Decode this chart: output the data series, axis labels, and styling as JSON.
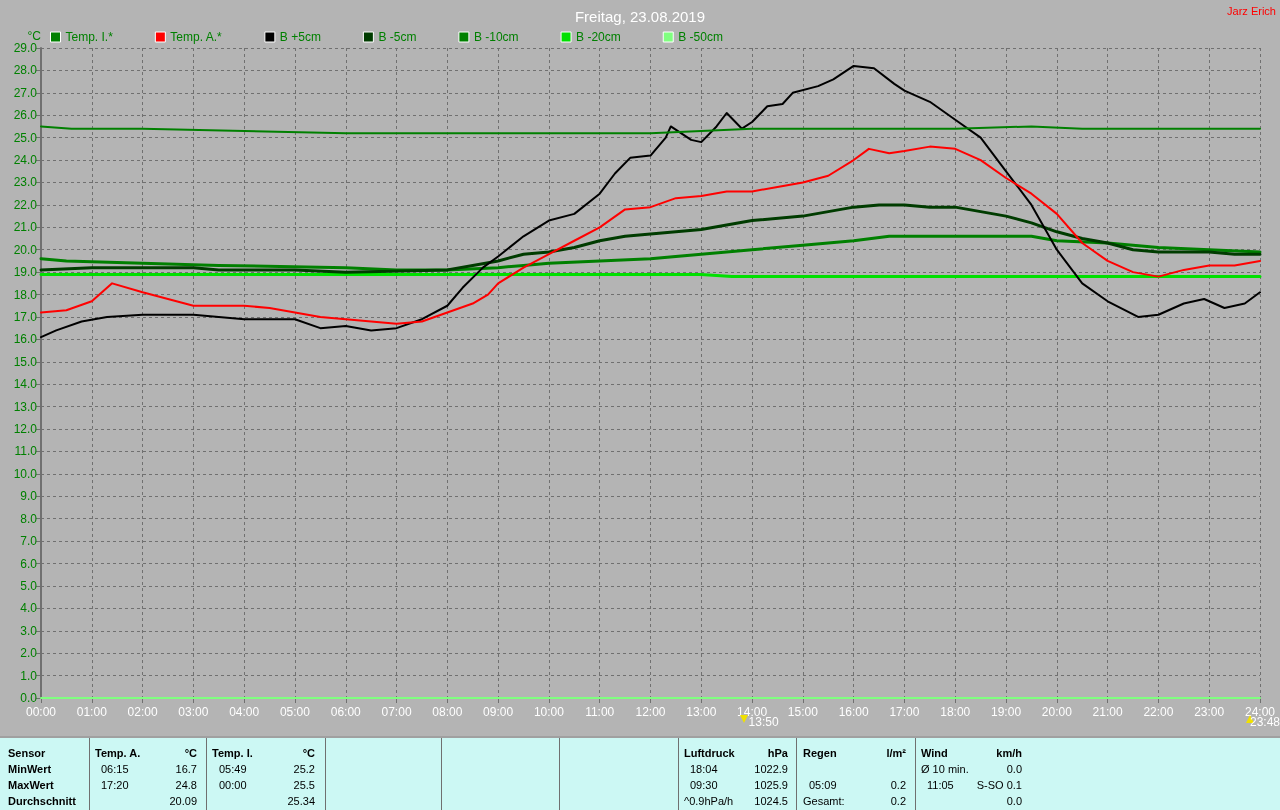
{
  "chart_data": {
    "type": "line",
    "title": "Freitag, 23.08.2019",
    "ylabel": "°C",
    "xlim": [
      0,
      24
    ],
    "ylim": [
      0,
      29
    ],
    "xticks": [
      {
        "value": 0,
        "label": "00:00"
      },
      {
        "value": 1,
        "label": "01:00"
      },
      {
        "value": 2,
        "label": "02:00"
      },
      {
        "value": 3,
        "label": "03:00"
      },
      {
        "value": 4,
        "label": "04:00"
      },
      {
        "value": 5,
        "label": "05:00"
      },
      {
        "value": 6,
        "label": "06:00"
      },
      {
        "value": 7,
        "label": "07:00"
      },
      {
        "value": 8,
        "label": "08:00"
      },
      {
        "value": 9,
        "label": "09:00"
      },
      {
        "value": 10,
        "label": "10:00"
      },
      {
        "value": 11,
        "label": "11:00"
      },
      {
        "value": 12,
        "label": "12:00"
      },
      {
        "value": 13,
        "label": "13:00"
      },
      {
        "value": 14,
        "label": "14:00"
      },
      {
        "value": 15,
        "label": "15:00"
      },
      {
        "value": 16,
        "label": "16:00"
      },
      {
        "value": 17,
        "label": "17:00"
      },
      {
        "value": 18,
        "label": "18:00"
      },
      {
        "value": 19,
        "label": "19:00"
      },
      {
        "value": 20,
        "label": "20:00"
      },
      {
        "value": 21,
        "label": "21:00"
      },
      {
        "value": 22,
        "label": "22:00"
      },
      {
        "value": 23,
        "label": "23:00"
      },
      {
        "value": 24,
        "label": "24:00"
      }
    ],
    "yticks": [
      {
        "value": 0,
        "label": "0.0"
      },
      {
        "value": 1,
        "label": "1.0"
      },
      {
        "value": 2,
        "label": "2.0"
      },
      {
        "value": 3,
        "label": "3.0"
      },
      {
        "value": 4,
        "label": "4.0"
      },
      {
        "value": 5,
        "label": "5.0"
      },
      {
        "value": 6,
        "label": "6.0"
      },
      {
        "value": 7,
        "label": "7.0"
      },
      {
        "value": 8,
        "label": "8.0"
      },
      {
        "value": 9,
        "label": "9.0"
      },
      {
        "value": 10,
        "label": "10.0"
      },
      {
        "value": 11,
        "label": "11.0"
      },
      {
        "value": 12,
        "label": "12.0"
      },
      {
        "value": 13,
        "label": "13.0"
      },
      {
        "value": 14,
        "label": "14.0"
      },
      {
        "value": 15,
        "label": "15.0"
      },
      {
        "value": 16,
        "label": "16.0"
      },
      {
        "value": 17,
        "label": "17.0"
      },
      {
        "value": 18,
        "label": "18.0"
      },
      {
        "value": 19,
        "label": "19.0"
      },
      {
        "value": 20,
        "label": "20.0"
      },
      {
        "value": 21,
        "label": "21.0"
      },
      {
        "value": 22,
        "label": "22.0"
      },
      {
        "value": 23,
        "label": "23.0"
      },
      {
        "value": 24,
        "label": "24.0"
      },
      {
        "value": 25,
        "label": "25.0"
      },
      {
        "value": 26,
        "label": "26.0"
      },
      {
        "value": 27,
        "label": "27.0"
      },
      {
        "value": 28,
        "label": "28.0"
      },
      {
        "value": 29,
        "label": "29.0"
      }
    ],
    "grid": true,
    "legend": "top left",
    "marker": "none",
    "line_style": "solid",
    "series": [
      {
        "name": "Temp. I.*",
        "color": "#008000",
        "x": [
          0,
          0.6,
          2,
          4,
          6,
          9,
          12,
          13,
          14,
          16,
          18,
          19.5,
          20.5,
          24
        ],
        "values": [
          25.5,
          25.4,
          25.4,
          25.3,
          25.2,
          25.2,
          25.2,
          25.3,
          25.4,
          25.4,
          25.4,
          25.5,
          25.4,
          25.4
        ]
      },
      {
        "name": "Temp. A.*",
        "color": "#ff0000",
        "x": [
          0,
          0.5,
          1,
          1.4,
          2,
          2.5,
          3,
          4,
          4.5,
          5,
          5.5,
          6,
          6.5,
          7,
          7.5,
          8,
          8.5,
          8.8,
          9,
          9.5,
          10,
          10.5,
          11,
          11.5,
          12,
          12.5,
          13,
          13.5,
          14,
          14.5,
          15,
          15.5,
          16,
          16.3,
          16.7,
          17,
          17.5,
          18,
          18.5,
          19,
          19.5,
          20,
          20.5,
          21,
          21.5,
          22,
          22.5,
          23,
          23.5,
          24
        ],
        "values": [
          17.2,
          17.3,
          17.7,
          18.5,
          18.1,
          17.8,
          17.5,
          17.5,
          17.4,
          17.2,
          17.0,
          16.9,
          16.8,
          16.7,
          16.8,
          17.2,
          17.6,
          18.0,
          18.5,
          19.2,
          19.8,
          20.4,
          21.0,
          21.8,
          21.9,
          22.3,
          22.4,
          22.6,
          22.6,
          22.8,
          23.0,
          23.3,
          24.0,
          24.5,
          24.3,
          24.4,
          24.6,
          24.5,
          24.0,
          23.2,
          22.5,
          21.6,
          20.3,
          19.5,
          19.0,
          18.8,
          19.1,
          19.3,
          19.3,
          19.5
        ]
      },
      {
        "name": "B +5cm",
        "color": "#000000",
        "x": [
          0,
          0.3,
          0.8,
          1.3,
          2,
          3,
          4,
          5,
          5.5,
          6,
          6.5,
          7,
          7.5,
          8,
          8.3,
          8.7,
          9,
          9.5,
          10,
          10.5,
          11,
          11.3,
          11.6,
          12,
          12.3,
          12.4,
          12.8,
          13,
          13.3,
          13.5,
          13.8,
          14,
          14.3,
          14.6,
          14.8,
          15.3,
          15.6,
          16,
          16.4,
          16.8,
          17,
          17.5,
          18,
          18.5,
          19,
          19.5,
          20,
          20.5,
          21,
          21.6,
          22,
          22.5,
          22.9,
          23.3,
          23.7,
          24
        ],
        "values": [
          16.1,
          16.4,
          16.8,
          17.0,
          17.1,
          17.1,
          16.9,
          16.9,
          16.5,
          16.6,
          16.4,
          16.5,
          16.9,
          17.5,
          18.3,
          19.2,
          19.7,
          20.6,
          21.3,
          21.6,
          22.5,
          23.4,
          24.1,
          24.2,
          25.0,
          25.5,
          24.9,
          24.8,
          25.5,
          26.1,
          25.4,
          25.7,
          26.4,
          26.5,
          27.0,
          27.3,
          27.6,
          28.2,
          28.1,
          27.4,
          27.1,
          26.6,
          25.8,
          25.0,
          23.5,
          22.0,
          20.0,
          18.5,
          17.7,
          17.0,
          17.1,
          17.6,
          17.8,
          17.4,
          17.6,
          18.1
        ]
      },
      {
        "name": "B -5cm",
        "color": "#003c00",
        "x": [
          0,
          1,
          3,
          3.5,
          5,
          6,
          8,
          8.5,
          9,
          9.5,
          10,
          10.5,
          11,
          11.5,
          12,
          13,
          13.5,
          14,
          15,
          15.5,
          16,
          16.5,
          17,
          17.5,
          18,
          18.5,
          19,
          19.5,
          20,
          20.5,
          21,
          21.5,
          22,
          23,
          23.5,
          24
        ],
        "values": [
          19.1,
          19.2,
          19.2,
          19.1,
          19.1,
          19.0,
          19.1,
          19.3,
          19.5,
          19.8,
          19.9,
          20.1,
          20.4,
          20.6,
          20.7,
          20.9,
          21.1,
          21.3,
          21.5,
          21.7,
          21.9,
          22.0,
          22.0,
          21.9,
          21.9,
          21.7,
          21.5,
          21.2,
          20.8,
          20.5,
          20.3,
          20.0,
          19.9,
          19.9,
          19.8,
          19.8
        ]
      },
      {
        "name": "B -10cm",
        "color": "#008000",
        "x": [
          0,
          0.5,
          2,
          3.5,
          6,
          7,
          8,
          9,
          9.5,
          10,
          11,
          12,
          13,
          14,
          15,
          16,
          16.7,
          19.5,
          20,
          21,
          22,
          23,
          24
        ],
        "values": [
          19.6,
          19.5,
          19.4,
          19.3,
          19.2,
          19.1,
          19.1,
          19.2,
          19.3,
          19.4,
          19.5,
          19.6,
          19.8,
          20.0,
          20.2,
          20.4,
          20.6,
          20.6,
          20.4,
          20.3,
          20.1,
          20.0,
          19.9
        ]
      },
      {
        "name": "B -20cm",
        "color": "#00e000",
        "x": [
          0,
          13,
          13.6,
          24
        ],
        "values": [
          18.9,
          18.9,
          18.8,
          18.8
        ]
      },
      {
        "name": "B -50cm",
        "color": "#80ff80",
        "x": [
          0,
          24
        ],
        "values": [
          0,
          0
        ]
      }
    ],
    "annotations": [
      "Jarz Erich",
      {
        "text": "13:50",
        "x": 13.8333,
        "y": 0
      },
      {
        "text": "23:48",
        "x": 23.8,
        "y": 0
      },
      "Sensor",
      "Temp. A.",
      "°C",
      "Temp. I.",
      "°C",
      "Luftdruck",
      "hPa",
      "Regen",
      "l/m²",
      "Wind",
      "km/h",
      "MinWert",
      "06:15",
      "16.7",
      "05:49",
      "25.2",
      "18:04",
      "1022.9",
      "Ø 10 min.",
      "0.0",
      "MaxWert",
      "17:20",
      "24.8",
      "00:00",
      "25.5",
      "09:30",
      "1025.9",
      "05:09",
      "0.2",
      "11:05",
      "S-SO 0.1",
      "Durchschnitt",
      "20.09",
      "25.34",
      "^0.9hPa/h",
      "1024.5",
      "Gesamt:",
      "0.2",
      "0.0"
    ]
  }
}
